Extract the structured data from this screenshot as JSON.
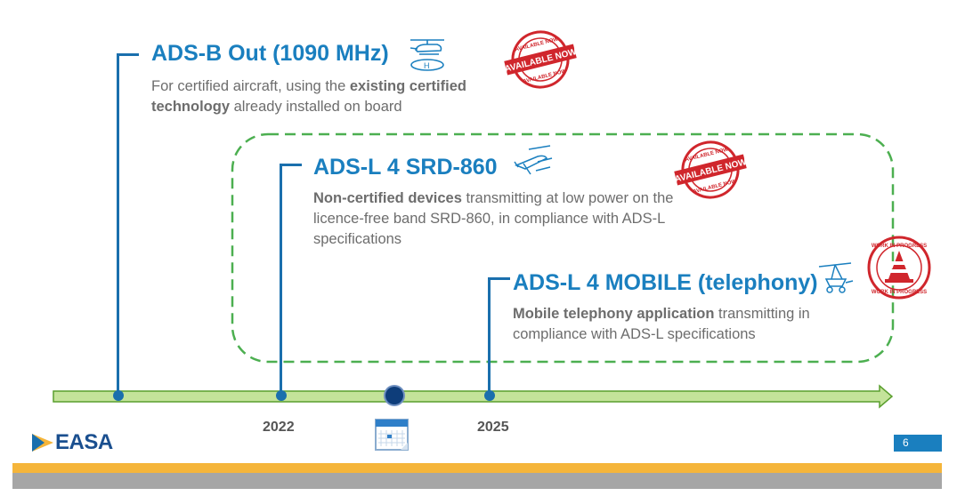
{
  "items": [
    {
      "title": "ADS-B Out (1090 MHz)",
      "desc_pre": "For certified aircraft, using the ",
      "desc_bold": "existing certified technology",
      "desc_post": " already installed on board",
      "stamp": "AVAILABLE NOW"
    },
    {
      "title": "ADS-L 4 SRD-860",
      "desc_bold": "Non-certified devices",
      "desc_post": " transmitting at low power on the licence-free band SRD-860, in compliance with ADS-L specifications",
      "stamp": "AVAILABLE NOW"
    },
    {
      "title": "ADS-L 4 MOBILE (telephony)",
      "desc_bold": "Mobile telephony application",
      "desc_post": " transmitting in compliance with ADS-L specifications",
      "stamp": "WORK IN PROGRESS"
    }
  ],
  "timeline": {
    "years": [
      "2022",
      "2025"
    ]
  },
  "footer": {
    "logo": "EASA",
    "page_number": "6"
  },
  "colors": {
    "accent": "#1a7fbf",
    "timeline_green": "#c4e39a",
    "dashed_box": "#4caf50",
    "footer_orange": "#f5b53a",
    "footer_gray": "#a6a6a6",
    "stamp_red": "#d0262c"
  }
}
